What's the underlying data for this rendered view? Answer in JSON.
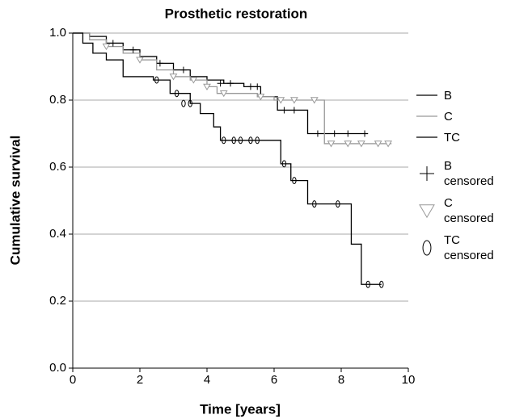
{
  "chart_data": {
    "type": "kaplan-meier",
    "title": "Prosthetic restoration",
    "xlabel": "Time [years]",
    "ylabel": "Cumulative survival",
    "xlim": [
      0,
      10
    ],
    "xticks": [
      0,
      2,
      4,
      6,
      8,
      10
    ],
    "ylim": [
      0,
      1
    ],
    "yticks": [
      {
        "value": 0,
        "label": "0.0"
      },
      {
        "value": 0.2,
        "label": "0.2"
      },
      {
        "value": 0.4,
        "label": "0.4"
      },
      {
        "value": 0.6,
        "label": "0.6"
      },
      {
        "value": 0.8,
        "label": "0.8"
      },
      {
        "value": 1,
        "label": "1.0"
      }
    ],
    "grid": true,
    "step": "post",
    "series": [
      {
        "name": "B",
        "color": "#000000",
        "x": [
          0,
          0.5,
          1,
          1.5,
          2,
          2.5,
          3,
          3.5,
          4,
          4.5,
          5.1,
          5.6,
          6.1,
          7.0,
          8.8
        ],
        "values": [
          1.0,
          0.99,
          0.97,
          0.95,
          0.93,
          0.91,
          0.89,
          0.87,
          0.86,
          0.85,
          0.84,
          0.81,
          0.77,
          0.7,
          0.7
        ]
      },
      {
        "name": "C",
        "color": "#999999",
        "x": [
          0,
          0.5,
          1,
          1.5,
          2,
          2.5,
          3,
          3.5,
          4,
          4.3,
          5,
          5.5,
          6,
          7.5,
          9.5
        ],
        "values": [
          1.0,
          0.98,
          0.96,
          0.94,
          0.92,
          0.89,
          0.87,
          0.86,
          0.84,
          0.82,
          0.82,
          0.81,
          0.8,
          0.67,
          0.67
        ]
      },
      {
        "name": "TC",
        "color": "#000000",
        "x": [
          0,
          0.3,
          0.6,
          1,
          1.5,
          2.4,
          2.9,
          3.5,
          3.8,
          4.2,
          4.4,
          5.8,
          6.2,
          6.5,
          7.0,
          8.3,
          8.6,
          9.2
        ],
        "values": [
          1.0,
          0.97,
          0.94,
          0.92,
          0.87,
          0.86,
          0.82,
          0.79,
          0.76,
          0.72,
          0.68,
          0.68,
          0.61,
          0.56,
          0.49,
          0.37,
          0.25,
          0.25
        ]
      }
    ],
    "censored": [
      {
        "name": "B\ncensored",
        "color": "#000000",
        "marker": "plus",
        "x": [
          1.2,
          1.8,
          2.6,
          3.3,
          4.4,
          4.7,
          5.3,
          5.5,
          6.3,
          6.6,
          7.3,
          7.8,
          8.2,
          8.7
        ],
        "values": [
          0.97,
          0.95,
          0.91,
          0.89,
          0.85,
          0.85,
          0.84,
          0.84,
          0.77,
          0.77,
          0.7,
          0.7,
          0.7,
          0.7
        ]
      },
      {
        "name": "C\ncensored",
        "color": "#999999",
        "marker": "triangle",
        "x": [
          1.0,
          2.0,
          3.0,
          3.6,
          4.0,
          4.5,
          5.6,
          6.2,
          6.6,
          7.2,
          7.7,
          8.2,
          8.6,
          9.1,
          9.4
        ],
        "values": [
          0.96,
          0.92,
          0.87,
          0.86,
          0.84,
          0.82,
          0.81,
          0.8,
          0.8,
          0.8,
          0.67,
          0.67,
          0.67,
          0.67,
          0.67
        ]
      },
      {
        "name": "TC\ncensored",
        "color": "#000000",
        "marker": "ellipse",
        "x": [
          2.5,
          3.1,
          3.3,
          3.5,
          4.5,
          4.8,
          5.0,
          5.3,
          5.5,
          6.3,
          6.6,
          7.2,
          7.9,
          8.8,
          9.2
        ],
        "values": [
          0.86,
          0.82,
          0.79,
          0.79,
          0.68,
          0.68,
          0.68,
          0.68,
          0.68,
          0.61,
          0.56,
          0.49,
          0.49,
          0.25,
          0.25
        ]
      }
    ]
  }
}
